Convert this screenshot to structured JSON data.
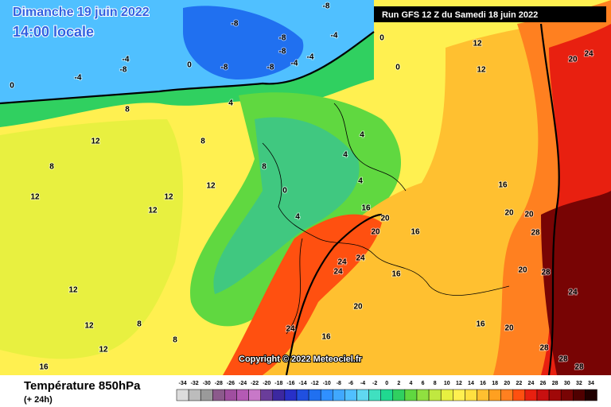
{
  "header": {
    "date": "Dimanche 19 juin 2022",
    "time": "14:00 locale",
    "run": "Run GFS 12 Z du Samedi 18 juin 2022"
  },
  "copyright": "Copyright © 2022 Meteociel.fr",
  "footer": {
    "parameter": "Température 850hPa",
    "lead": "(+ 24h)"
  },
  "scale": {
    "values": [
      -34,
      -32,
      -30,
      -28,
      -26,
      -24,
      -22,
      -20,
      -18,
      -16,
      -14,
      -12,
      -10,
      -8,
      -6,
      -4,
      -2,
      0,
      2,
      4,
      6,
      8,
      10,
      12,
      14,
      16,
      18,
      20,
      22,
      24,
      26,
      28,
      30,
      32,
      34
    ],
    "colors": [
      "#dcdcdc",
      "#bcbcbc",
      "#9a9a9a",
      "#8c5a8c",
      "#a04ea0",
      "#b45ab4",
      "#c878c8",
      "#6a3d9a",
      "#3c28a0",
      "#2830c8",
      "#2050e0",
      "#2070f0",
      "#3090ff",
      "#40a8ff",
      "#50c0ff",
      "#60d8f0",
      "#40e0c0",
      "#20d890",
      "#30d060",
      "#60d840",
      "#90e040",
      "#c0e840",
      "#e8f040",
      "#fff050",
      "#ffe040",
      "#ffc030",
      "#ffa020",
      "#ff8020",
      "#ff5010",
      "#e82010",
      "#c81010",
      "#a00808",
      "#780404",
      "#500000",
      "#200000"
    ]
  },
  "isotherm_labels": [
    -8,
    -8,
    -8,
    -8,
    -8,
    -8,
    -8,
    -4,
    -4,
    -4,
    -4,
    -4,
    0,
    0,
    0,
    0,
    0,
    4,
    4,
    4,
    4,
    4,
    8,
    8,
    8,
    8,
    8,
    8,
    12,
    12,
    12,
    12,
    12,
    12,
    12,
    12,
    12,
    12,
    16,
    16,
    16,
    16,
    16,
    16,
    16,
    20,
    20,
    20,
    20,
    20,
    20,
    20,
    20,
    24,
    24,
    24,
    24,
    24,
    24,
    28,
    28,
    28,
    28,
    28
  ]
}
